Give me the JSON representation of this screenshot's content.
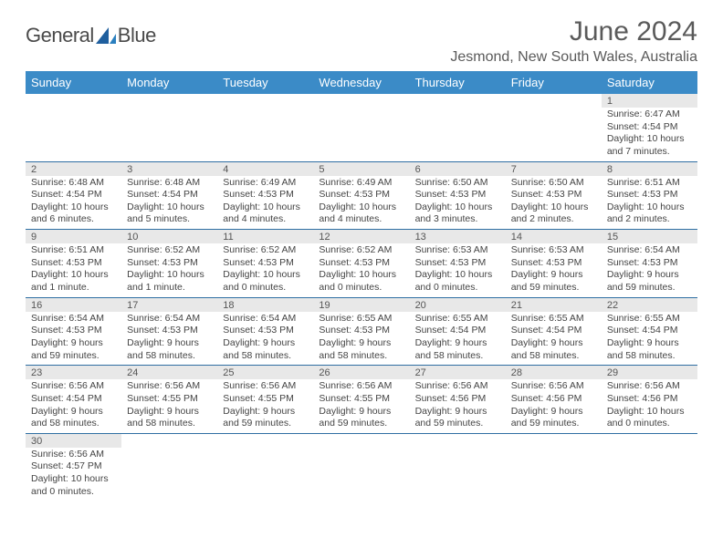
{
  "logo": {
    "text1": "General",
    "text2": "Blue"
  },
  "title": "June 2024",
  "location": "Jesmond, New South Wales, Australia",
  "colors": {
    "header_bg": "#3b8bc7",
    "header_text": "#ffffff",
    "daynum_bg": "#e8e8e8",
    "text": "#444444",
    "rule": "#2f6fa3"
  },
  "weekday_headers": [
    "Sunday",
    "Monday",
    "Tuesday",
    "Wednesday",
    "Thursday",
    "Friday",
    "Saturday"
  ],
  "weeks": [
    {
      "nums": [
        "",
        "",
        "",
        "",
        "",
        "",
        "1"
      ],
      "cells": [
        null,
        null,
        null,
        null,
        null,
        null,
        {
          "sunrise": "Sunrise: 6:47 AM",
          "sunset": "Sunset: 4:54 PM",
          "daylight1": "Daylight: 10 hours",
          "daylight2": "and 7 minutes."
        }
      ]
    },
    {
      "nums": [
        "2",
        "3",
        "4",
        "5",
        "6",
        "7",
        "8"
      ],
      "cells": [
        {
          "sunrise": "Sunrise: 6:48 AM",
          "sunset": "Sunset: 4:54 PM",
          "daylight1": "Daylight: 10 hours",
          "daylight2": "and 6 minutes."
        },
        {
          "sunrise": "Sunrise: 6:48 AM",
          "sunset": "Sunset: 4:54 PM",
          "daylight1": "Daylight: 10 hours",
          "daylight2": "and 5 minutes."
        },
        {
          "sunrise": "Sunrise: 6:49 AM",
          "sunset": "Sunset: 4:53 PM",
          "daylight1": "Daylight: 10 hours",
          "daylight2": "and 4 minutes."
        },
        {
          "sunrise": "Sunrise: 6:49 AM",
          "sunset": "Sunset: 4:53 PM",
          "daylight1": "Daylight: 10 hours",
          "daylight2": "and 4 minutes."
        },
        {
          "sunrise": "Sunrise: 6:50 AM",
          "sunset": "Sunset: 4:53 PM",
          "daylight1": "Daylight: 10 hours",
          "daylight2": "and 3 minutes."
        },
        {
          "sunrise": "Sunrise: 6:50 AM",
          "sunset": "Sunset: 4:53 PM",
          "daylight1": "Daylight: 10 hours",
          "daylight2": "and 2 minutes."
        },
        {
          "sunrise": "Sunrise: 6:51 AM",
          "sunset": "Sunset: 4:53 PM",
          "daylight1": "Daylight: 10 hours",
          "daylight2": "and 2 minutes."
        }
      ]
    },
    {
      "nums": [
        "9",
        "10",
        "11",
        "12",
        "13",
        "14",
        "15"
      ],
      "cells": [
        {
          "sunrise": "Sunrise: 6:51 AM",
          "sunset": "Sunset: 4:53 PM",
          "daylight1": "Daylight: 10 hours",
          "daylight2": "and 1 minute."
        },
        {
          "sunrise": "Sunrise: 6:52 AM",
          "sunset": "Sunset: 4:53 PM",
          "daylight1": "Daylight: 10 hours",
          "daylight2": "and 1 minute."
        },
        {
          "sunrise": "Sunrise: 6:52 AM",
          "sunset": "Sunset: 4:53 PM",
          "daylight1": "Daylight: 10 hours",
          "daylight2": "and 0 minutes."
        },
        {
          "sunrise": "Sunrise: 6:52 AM",
          "sunset": "Sunset: 4:53 PM",
          "daylight1": "Daylight: 10 hours",
          "daylight2": "and 0 minutes."
        },
        {
          "sunrise": "Sunrise: 6:53 AM",
          "sunset": "Sunset: 4:53 PM",
          "daylight1": "Daylight: 10 hours",
          "daylight2": "and 0 minutes."
        },
        {
          "sunrise": "Sunrise: 6:53 AM",
          "sunset": "Sunset: 4:53 PM",
          "daylight1": "Daylight: 9 hours",
          "daylight2": "and 59 minutes."
        },
        {
          "sunrise": "Sunrise: 6:54 AM",
          "sunset": "Sunset: 4:53 PM",
          "daylight1": "Daylight: 9 hours",
          "daylight2": "and 59 minutes."
        }
      ]
    },
    {
      "nums": [
        "16",
        "17",
        "18",
        "19",
        "20",
        "21",
        "22"
      ],
      "cells": [
        {
          "sunrise": "Sunrise: 6:54 AM",
          "sunset": "Sunset: 4:53 PM",
          "daylight1": "Daylight: 9 hours",
          "daylight2": "and 59 minutes."
        },
        {
          "sunrise": "Sunrise: 6:54 AM",
          "sunset": "Sunset: 4:53 PM",
          "daylight1": "Daylight: 9 hours",
          "daylight2": "and 58 minutes."
        },
        {
          "sunrise": "Sunrise: 6:54 AM",
          "sunset": "Sunset: 4:53 PM",
          "daylight1": "Daylight: 9 hours",
          "daylight2": "and 58 minutes."
        },
        {
          "sunrise": "Sunrise: 6:55 AM",
          "sunset": "Sunset: 4:53 PM",
          "daylight1": "Daylight: 9 hours",
          "daylight2": "and 58 minutes."
        },
        {
          "sunrise": "Sunrise: 6:55 AM",
          "sunset": "Sunset: 4:54 PM",
          "daylight1": "Daylight: 9 hours",
          "daylight2": "and 58 minutes."
        },
        {
          "sunrise": "Sunrise: 6:55 AM",
          "sunset": "Sunset: 4:54 PM",
          "daylight1": "Daylight: 9 hours",
          "daylight2": "and 58 minutes."
        },
        {
          "sunrise": "Sunrise: 6:55 AM",
          "sunset": "Sunset: 4:54 PM",
          "daylight1": "Daylight: 9 hours",
          "daylight2": "and 58 minutes."
        }
      ]
    },
    {
      "nums": [
        "23",
        "24",
        "25",
        "26",
        "27",
        "28",
        "29"
      ],
      "cells": [
        {
          "sunrise": "Sunrise: 6:56 AM",
          "sunset": "Sunset: 4:54 PM",
          "daylight1": "Daylight: 9 hours",
          "daylight2": "and 58 minutes."
        },
        {
          "sunrise": "Sunrise: 6:56 AM",
          "sunset": "Sunset: 4:55 PM",
          "daylight1": "Daylight: 9 hours",
          "daylight2": "and 58 minutes."
        },
        {
          "sunrise": "Sunrise: 6:56 AM",
          "sunset": "Sunset: 4:55 PM",
          "daylight1": "Daylight: 9 hours",
          "daylight2": "and 59 minutes."
        },
        {
          "sunrise": "Sunrise: 6:56 AM",
          "sunset": "Sunset: 4:55 PM",
          "daylight1": "Daylight: 9 hours",
          "daylight2": "and 59 minutes."
        },
        {
          "sunrise": "Sunrise: 6:56 AM",
          "sunset": "Sunset: 4:56 PM",
          "daylight1": "Daylight: 9 hours",
          "daylight2": "and 59 minutes."
        },
        {
          "sunrise": "Sunrise: 6:56 AM",
          "sunset": "Sunset: 4:56 PM",
          "daylight1": "Daylight: 9 hours",
          "daylight2": "and 59 minutes."
        },
        {
          "sunrise": "Sunrise: 6:56 AM",
          "sunset": "Sunset: 4:56 PM",
          "daylight1": "Daylight: 10 hours",
          "daylight2": "and 0 minutes."
        }
      ]
    },
    {
      "nums": [
        "30",
        "",
        "",
        "",
        "",
        "",
        ""
      ],
      "cells": [
        {
          "sunrise": "Sunrise: 6:56 AM",
          "sunset": "Sunset: 4:57 PM",
          "daylight1": "Daylight: 10 hours",
          "daylight2": "and 0 minutes."
        },
        null,
        null,
        null,
        null,
        null,
        null
      ]
    }
  ]
}
